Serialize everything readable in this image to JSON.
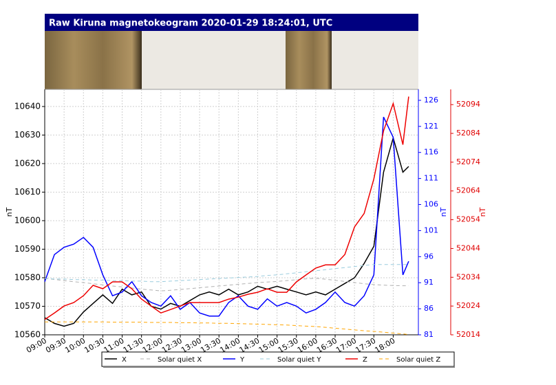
{
  "chart_data": {
    "type": "line",
    "title": "Raw Kiruna magnetokeogram 2020-01-29 18:24:01, UTC",
    "x": [
      9,
      9.25,
      9.5,
      9.75,
      10,
      10.25,
      10.5,
      10.75,
      11,
      11.25,
      11.5,
      11.75,
      12,
      12.25,
      12.5,
      12.75,
      13,
      13.25,
      13.5,
      13.75,
      14,
      14.25,
      14.5,
      14.75,
      15,
      15.25,
      15.5,
      15.75,
      16,
      16.25,
      16.5,
      16.75,
      17,
      17.25,
      17.5,
      17.75,
      18,
      18.25,
      18.4
    ],
    "xlim": [
      9,
      18.65
    ],
    "xticks": [
      {
        "value": 9,
        "label": "09:00"
      },
      {
        "value": 9.5,
        "label": "09:30"
      },
      {
        "value": 10,
        "label": "10:00"
      },
      {
        "value": 10.5,
        "label": "10:30"
      },
      {
        "value": 11,
        "label": "11:00"
      },
      {
        "value": 11.5,
        "label": "11:30"
      },
      {
        "value": 12,
        "label": "12:00"
      },
      {
        "value": 12.5,
        "label": "12:30"
      },
      {
        "value": 13,
        "label": "13:00"
      },
      {
        "value": 13.5,
        "label": "13:30"
      },
      {
        "value": 14,
        "label": "14:00"
      },
      {
        "value": 14.5,
        "label": "14:30"
      },
      {
        "value": 15,
        "label": "15:00"
      },
      {
        "value": 15.5,
        "label": "15:30"
      },
      {
        "value": 16,
        "label": "16:00"
      },
      {
        "value": 16.5,
        "label": "16:30"
      },
      {
        "value": 17,
        "label": "17:00"
      },
      {
        "value": 17.5,
        "label": "17:30"
      },
      {
        "value": 18,
        "label": "18:00"
      }
    ],
    "ylim": [
      10560,
      10646
    ],
    "yticks": [
      10560,
      10570,
      10580,
      10590,
      10600,
      10610,
      10620,
      10630,
      10640
    ],
    "ylabel": "nT",
    "y2lim": [
      81,
      128.1
    ],
    "y2ticks": [
      81,
      86,
      91,
      96,
      101,
      106,
      111,
      116,
      121,
      126
    ],
    "y2label": "nT",
    "y2color": "#0000ff",
    "y3lim": [
      52014,
      52099.3
    ],
    "y3ticks": [
      52014,
      52024,
      52034,
      52044,
      52054,
      52064,
      52074,
      52084,
      52094
    ],
    "y3label": "nT",
    "y3color": "#e00000",
    "grid": true,
    "legend": "bottom",
    "series": [
      {
        "name": "X",
        "color": "#000000",
        "linestyle": "solid",
        "axis": "y",
        "values": [
          10566,
          10564,
          10563,
          10564,
          10568,
          10571,
          10574,
          10571,
          10576,
          10574,
          10575,
          10570,
          10569,
          10571,
          10570,
          10572,
          10574,
          10575,
          10574,
          10576,
          10574,
          10575,
          10577,
          10576,
          10577,
          10576,
          10575,
          10574,
          10575,
          10574,
          10576,
          10578,
          10580,
          10585,
          10591,
          10617,
          10629,
          10617,
          10619
        ]
      },
      {
        "name": "Solar quiet X",
        "color": "#b0b0b0",
        "linestyle": "dashed",
        "axis": "y",
        "values": [
          10579.8,
          10579.4,
          10579.0,
          10578.6,
          10578.3,
          10577.9,
          10577.5,
          10577.1,
          10576.8,
          10576.4,
          10576.0,
          10575.7,
          10575.4,
          10575.6,
          10575.9,
          10576.2,
          10576.5,
          10576.8,
          10577.1,
          10577.4,
          10577.7,
          10578.0,
          10578.3,
          10578.5,
          10578.7,
          10579.0,
          10579.3,
          10579.6,
          10579.8,
          10579.5,
          10579.1,
          10578.7,
          10578.3,
          10577.9,
          10577.6,
          10577.4,
          10577.3,
          10577.2,
          10577.2
        ]
      },
      {
        "name": "Y",
        "color": "#0000ff",
        "linestyle": "solid",
        "axis": "y2",
        "values": [
          91.2,
          96.4,
          97.8,
          98.4,
          99.7,
          97.8,
          92.5,
          88.5,
          89.2,
          91.2,
          88.5,
          87.2,
          86.5,
          88.5,
          85.9,
          87.2,
          85.2,
          84.6,
          84.6,
          87.2,
          88.5,
          86.5,
          85.9,
          87.9,
          86.5,
          87.2,
          86.5,
          85.2,
          85.9,
          87.2,
          89.2,
          87.2,
          86.5,
          88.5,
          92.5,
          122.8,
          118.9,
          92.5,
          95.1
        ]
      },
      {
        "name": "Solar quiet Y",
        "color": "#99ccdd",
        "linestyle": "dashed",
        "axis": "y2",
        "values": [
          91.8,
          91.7,
          91.7,
          91.6,
          91.6,
          91.5,
          91.5,
          91.4,
          91.4,
          91.3,
          91.3,
          91.2,
          91.2,
          91.3,
          91.4,
          91.5,
          91.6,
          91.7,
          91.8,
          91.9,
          92.0,
          92.1,
          92.2,
          92.4,
          92.5,
          92.7,
          92.9,
          93.1,
          93.3,
          93.5,
          93.7,
          93.9,
          94.1,
          94.3,
          94.5,
          94.5,
          94.5,
          94.5,
          94.5
        ]
      },
      {
        "name": "Z",
        "color": "#ee0000",
        "linestyle": "solid",
        "axis": "y3",
        "values": [
          52019.3,
          52021.6,
          52024,
          52025.2,
          52027.6,
          52031.2,
          52030,
          52032.4,
          52032.4,
          52030,
          52026.4,
          52024,
          52021.6,
          52022.8,
          52024,
          52025.2,
          52025.2,
          52025.2,
          52025.2,
          52026.4,
          52027.1,
          52028.1,
          52028.8,
          52030,
          52028.8,
          52028.8,
          52032.4,
          52034.8,
          52037.2,
          52038.3,
          52038.3,
          52041.9,
          52051.5,
          52056.2,
          52068.2,
          52084.9,
          52094.4,
          52080.1,
          52096.8
        ]
      },
      {
        "name": "Solar quiet Z",
        "color": "#ffa500",
        "linestyle": "dashed",
        "axis": "y3",
        "values": [
          52018.5,
          52018.5,
          52018.5,
          52018.5,
          52018.5,
          52018.5,
          52018.5,
          52018.4,
          52018.4,
          52018.4,
          52018.4,
          52018.3,
          52018.3,
          52018.3,
          52018.2,
          52018.2,
          52018.1,
          52018.1,
          52018.0,
          52018.0,
          52017.9,
          52017.8,
          52017.7,
          52017.6,
          52017.5,
          52017.4,
          52017.2,
          52017.0,
          52016.9,
          52016.6,
          52016.3,
          52016.0,
          52015.7,
          52015.4,
          52015.2,
          52014.9,
          52014.6,
          52014.3,
          52014.1
        ]
      }
    ]
  }
}
